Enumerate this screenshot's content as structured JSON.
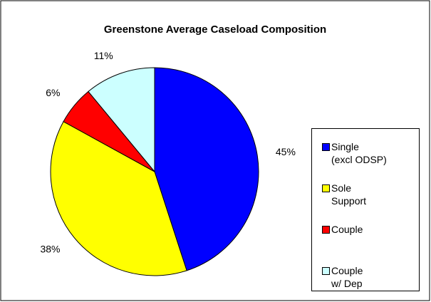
{
  "chart_data": {
    "type": "pie",
    "title": "Greenstone Average Caseload Composition",
    "categories": [
      "Single\n(excl ODSP)",
      "Sole\nSupport",
      "Couple",
      "Couple\nw/ Dep"
    ],
    "values": [
      45,
      38,
      6,
      11
    ],
    "value_labels": [
      "45%",
      "38%",
      "6%",
      "11%"
    ],
    "colors": [
      "#0000ff",
      "#ffff00",
      "#ff0000",
      "#ccffff"
    ],
    "legend": "right"
  }
}
